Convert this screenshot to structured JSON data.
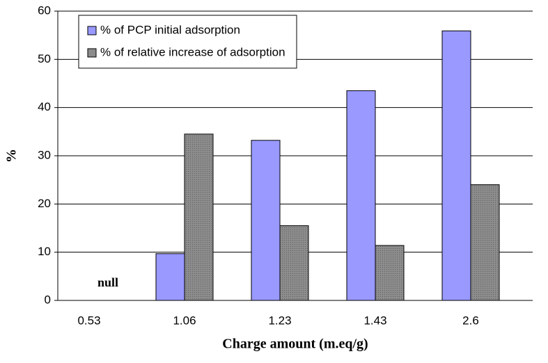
{
  "chart_data": {
    "type": "bar",
    "categories": [
      "0.53",
      "1.06",
      "1.23",
      "1.43",
      "2.6"
    ],
    "series": [
      {
        "name": "% of PCP initial adsorption",
        "color": "#9999ff",
        "values": [
          null,
          9.7,
          33.2,
          43.5,
          55.9
        ]
      },
      {
        "name": "% of relative increase of adsorption",
        "color": "#8c8c8c",
        "values": [
          null,
          34.5,
          15.5,
          11.4,
          24
        ]
      }
    ],
    "annotation": "null",
    "x_label": "Charge amount (m.eq/g)",
    "y_label": "%",
    "ylim": [
      0,
      60
    ],
    "yticks": [
      0,
      10,
      20,
      30,
      40,
      50,
      60
    ],
    "grid": true,
    "legend": "top-left"
  }
}
